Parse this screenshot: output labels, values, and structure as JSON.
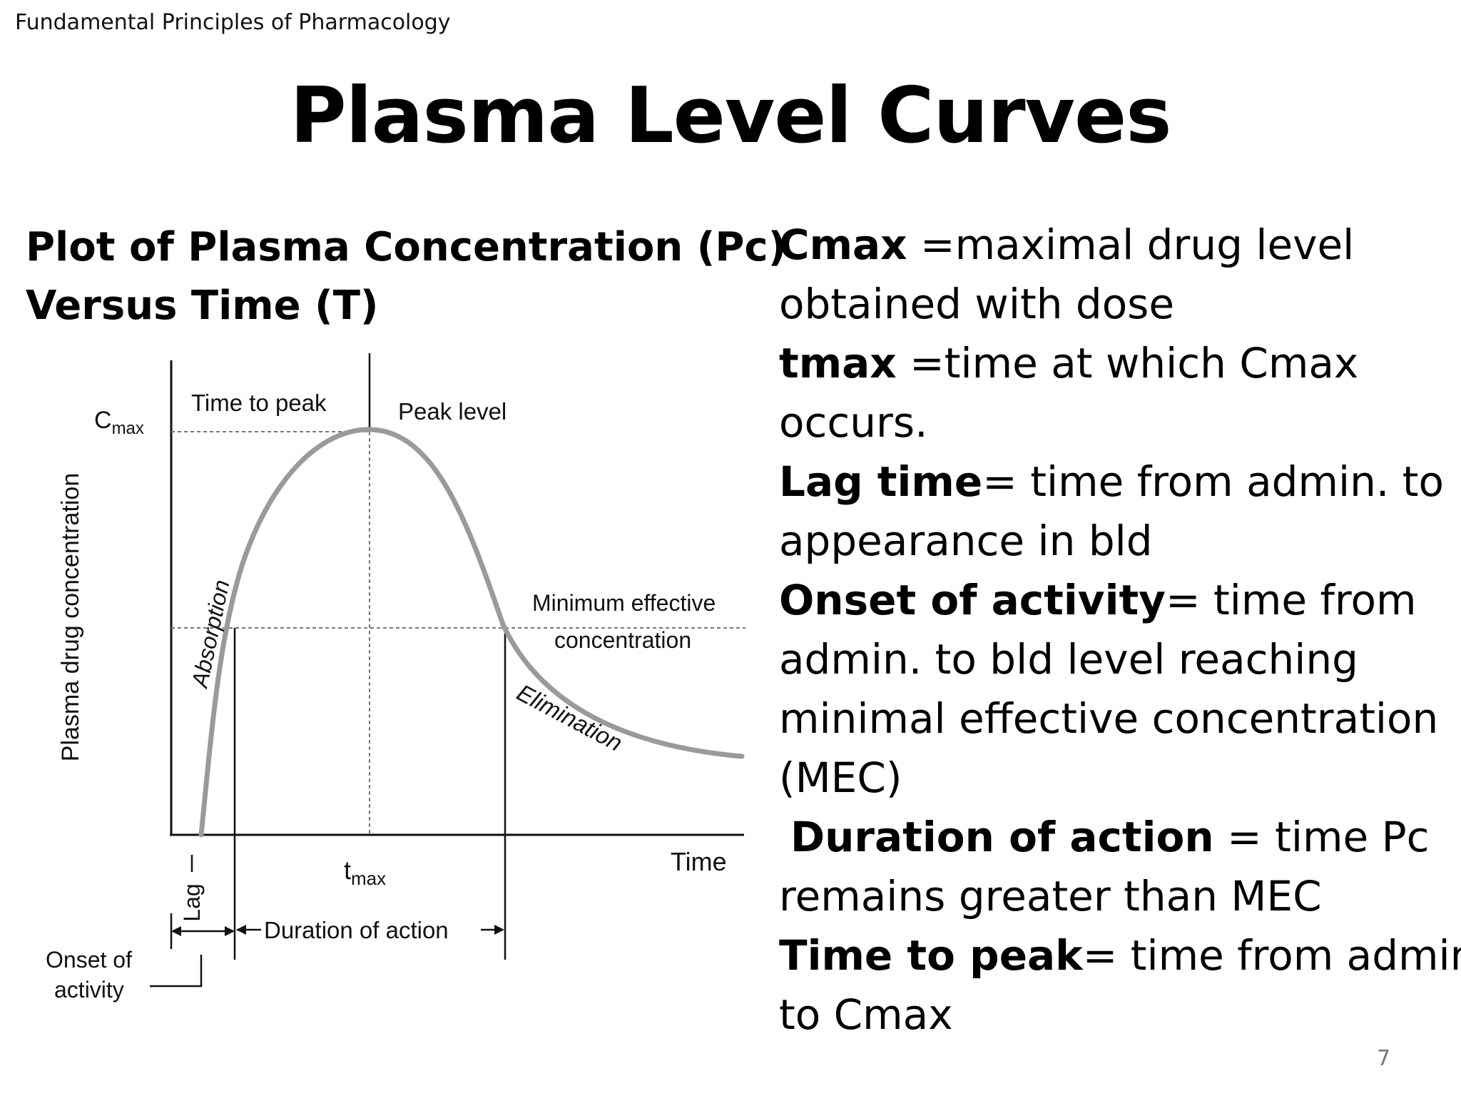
{
  "header": {
    "course": "Fundamental Principles of Pharmacology"
  },
  "slide": {
    "title": "Plasma Level Curves",
    "subtitle_line1": "Plot of Plasma Concentration (Pc)",
    "subtitle_line2": "Versus Time (T)",
    "page_number": "7"
  },
  "definitions": {
    "cmax_term": "Cmax",
    "cmax_text1": " =maximal drug level",
    "cmax_text2": "obtained with dose",
    "tmax_term": "tmax",
    "tmax_text1": " =time at which Cmax",
    "tmax_text2": "occurs.",
    "lag_term": "Lag time",
    "lag_text1": "= time from admin. to",
    "lag_text2": "appearance in bld",
    "onset_term": "Onset of activity",
    "onset_text1": "= time from",
    "onset_text2": "admin. to bld level reaching",
    "onset_text3": "minimal effective concentration",
    "onset_text4": "(MEC)",
    "duration_term": "Duration of action",
    "duration_text1": " = time Pc",
    "duration_text2": "remains greater than MEC",
    "peak_term": "Time to peak",
    "peak_text1": "= time from admin.",
    "peak_text2": "to Cmax"
  },
  "chart_data": {
    "type": "line",
    "ylabel": "Plasma drug concentration",
    "xlabel": "Time",
    "curve_color": "#9a9a9a",
    "labels": {
      "cmax_c": "C",
      "cmax_sub": "max",
      "time_to_peak": "Time to peak",
      "peak_level": "Peak level",
      "mec_line1": "Minimum effective",
      "mec_line2": "concentration",
      "absorption": "Absorption",
      "elimination": "Elimination",
      "tmax_t": "t",
      "tmax_sub": "max",
      "lag": "Lag",
      "duration": "Duration of action",
      "onset_line1": "Onset of",
      "onset_line2": "activity"
    }
  }
}
